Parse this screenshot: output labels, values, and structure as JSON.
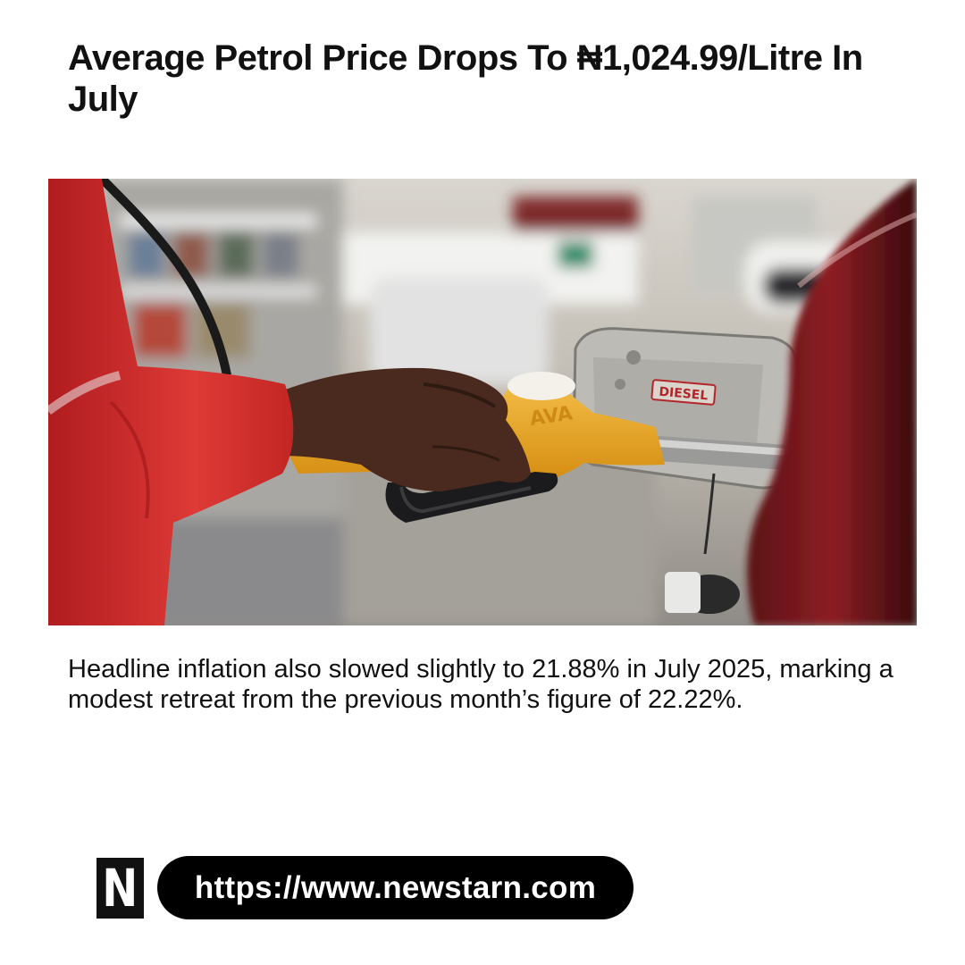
{
  "article": {
    "headline": "Average Petrol Price Drops To ₦1,024.99/Litre In July",
    "summary": "Headline inflation also slowed slightly to 21.88% in July 2025, marking a modest retreat from the previous month’s figure of 22.22%."
  },
  "photo": {
    "nozzle_brand": "AVA",
    "fuel_cap_label": "DIESEL"
  },
  "brand": {
    "logo_letter": "N",
    "url": "https://www.newstarn.com"
  },
  "colors": {
    "text": "#111111",
    "pill": "#000000",
    "nozzle": "#e8a418",
    "sleeve": "#d42a2a"
  }
}
